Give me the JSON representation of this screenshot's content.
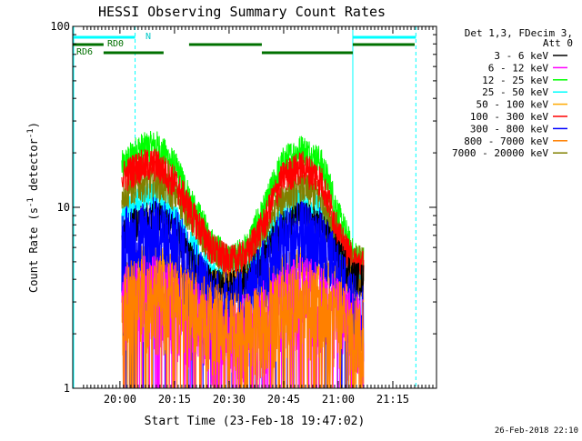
{
  "chart_data": {
    "type": "line",
    "title": "HESSI Observing Summary Count Rates",
    "xlabel": "Start Time (23-Feb-18 19:47:02)",
    "ylabel": "Count Rate (s^-1 detector^-1)",
    "yscale": "log",
    "ylim": [
      1,
      100
    ],
    "xlim": [
      "19:47:02",
      "21:27:00"
    ],
    "xticks": [
      "20:00",
      "20:15",
      "20:30",
      "20:45",
      "21:00",
      "21:15"
    ],
    "yticks": [
      "1",
      "10",
      "100"
    ],
    "grid": false,
    "legend_position": "right",
    "legend_header": [
      "Det 1,3, FDecim 3,",
      "Att 0"
    ],
    "timestamp": "26-Feb-2018 22:10",
    "annotations": {
      "night_marker": "N",
      "saa_label_top": "RD0",
      "saa_label_bottom": "RD6"
    },
    "phase_lines": [
      "20:04:10",
      "21:04:00",
      "21:21:20"
    ],
    "dashed_lines": [
      "20:04:10",
      "21:21:20"
    ],
    "night_intervals": [
      [
        "19:47:02",
        "20:04:10"
      ],
      [
        "21:04:00",
        "21:21:20"
      ]
    ],
    "saa_intervals": [
      [
        "19:47:02",
        "19:55:30"
      ],
      [
        "19:55:30",
        "20:12:00"
      ],
      [
        "20:19:00",
        "20:39:00"
      ],
      [
        "20:39:00",
        "21:04:00"
      ],
      [
        "21:04:00",
        "21:21:00"
      ]
    ],
    "data_window": [
      "20:00:30",
      "21:07:00"
    ],
    "time_samples": [
      "20:01",
      "20:05",
      "20:10",
      "20:15",
      "20:20",
      "20:25",
      "20:30",
      "20:35",
      "20:40",
      "20:45",
      "20:50",
      "20:55",
      "21:00",
      "21:04",
      "21:07"
    ],
    "series": [
      {
        "name": "3 - 6 keV",
        "color": "#000000",
        "values": [
          7.0,
          8.5,
          9.0,
          7.5,
          5.0,
          3.8,
          3.6,
          4.0,
          5.5,
          8.0,
          9.0,
          8.0,
          5.5,
          4.2,
          4.0
        ]
      },
      {
        "name": "6 - 12 keV",
        "color": "#ff00ff",
        "values": [
          3.0,
          3.5,
          3.5,
          3.2,
          2.6,
          2.2,
          2.0,
          2.2,
          2.6,
          3.2,
          3.5,
          3.2,
          2.6,
          2.3,
          2.0
        ]
      },
      {
        "name": "12 - 25 keV",
        "color": "#00ff00",
        "values": [
          17.0,
          21.0,
          22.0,
          17.0,
          10.0,
          6.5,
          5.0,
          6.0,
          10.0,
          18.0,
          21.0,
          18.0,
          9.0,
          5.5,
          5.0
        ]
      },
      {
        "name": "25 - 50 keV",
        "color": "#00ffff",
        "values": [
          9.0,
          11.0,
          11.5,
          9.0,
          6.0,
          4.3,
          3.9,
          4.3,
          6.0,
          9.5,
          11.0,
          9.5,
          6.0,
          4.5,
          4.2
        ]
      },
      {
        "name": "50 - 100 keV",
        "color": "#ffaa00",
        "values": [
          4.5,
          5.0,
          5.2,
          4.6,
          4.0,
          3.8,
          3.7,
          3.8,
          4.0,
          4.6,
          5.0,
          4.6,
          4.0,
          3.8,
          3.6
        ]
      },
      {
        "name": "100 - 300 keV",
        "color": "#ff0000",
        "values": [
          15.0,
          17.0,
          17.5,
          14.0,
          9.0,
          6.0,
          5.0,
          5.5,
          8.5,
          15.0,
          17.0,
          14.5,
          7.0,
          5.0,
          4.8
        ]
      },
      {
        "name": "300 - 800 keV",
        "color": "#0000ff",
        "values": [
          6.5,
          7.0,
          7.5,
          6.5,
          4.5,
          3.0,
          2.8,
          3.0,
          4.5,
          6.5,
          7.0,
          6.5,
          4.0,
          2.8,
          2.6
        ]
      },
      {
        "name": "800 - 7000 keV",
        "color": "#ff8000",
        "values": [
          3.2,
          3.4,
          3.4,
          3.2,
          3.0,
          2.6,
          2.2,
          2.2,
          2.5,
          3.0,
          3.3,
          3.0,
          2.6,
          2.2,
          2.0
        ]
      },
      {
        "name": "7000 - 20000 keV",
        "color": "#808000",
        "values": [
          12.0,
          13.5,
          14.0,
          12.0,
          8.5,
          6.0,
          5.0,
          5.5,
          7.5,
          11.5,
          13.0,
          11.5,
          7.0,
          5.2,
          5.0
        ]
      }
    ]
  }
}
